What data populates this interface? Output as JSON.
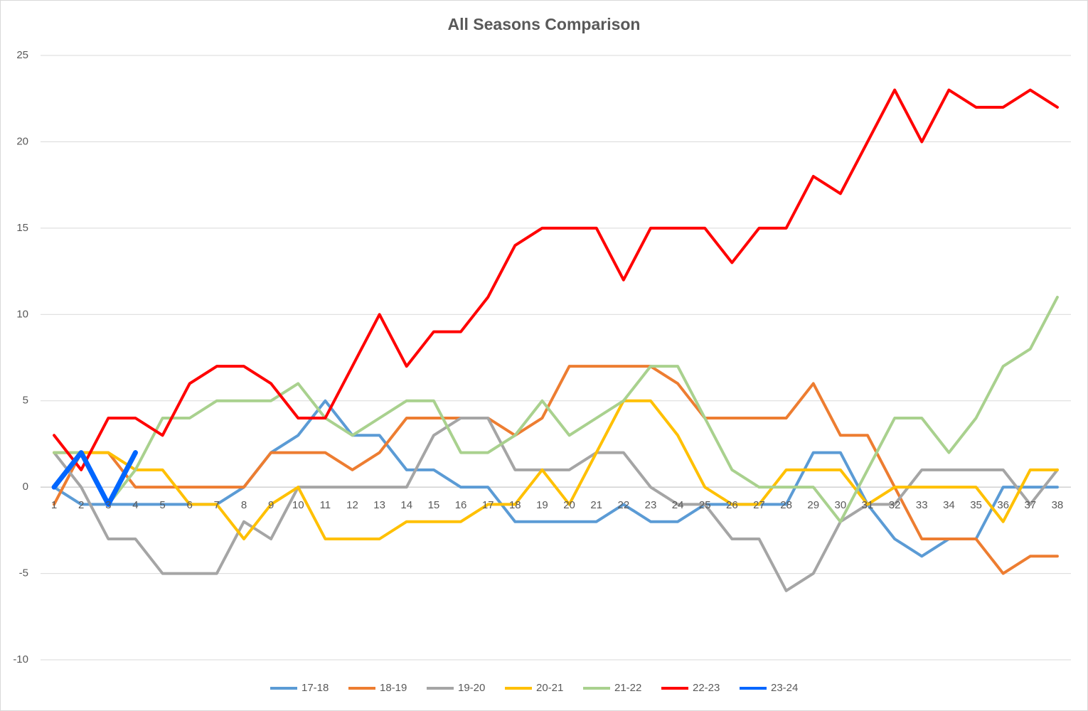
{
  "chart_data": {
    "type": "line",
    "title": "All Seasons Comparison",
    "categories": [
      1,
      2,
      3,
      4,
      5,
      6,
      7,
      8,
      9,
      10,
      11,
      12,
      13,
      14,
      15,
      16,
      17,
      18,
      19,
      20,
      21,
      22,
      23,
      24,
      25,
      26,
      27,
      28,
      29,
      30,
      31,
      32,
      33,
      34,
      35,
      36,
      37,
      38
    ],
    "ylim": [
      -10,
      25
    ],
    "yticks": [
      -10,
      -5,
      0,
      5,
      10,
      15,
      20,
      25
    ],
    "grid": true,
    "legend": "bottom",
    "series": [
      {
        "name": "17-18",
        "color": "#5b9bd5",
        "values": [
          0,
          -1,
          -1,
          -1,
          -1,
          -1,
          -1,
          0,
          2,
          3,
          5,
          3,
          3,
          1,
          1,
          0,
          0,
          -2,
          -2,
          -2,
          -2,
          -1,
          -2,
          -2,
          -1,
          -1,
          -1,
          -1,
          2,
          2,
          -1,
          -3,
          -4,
          -3,
          -3,
          0,
          0,
          0
        ]
      },
      {
        "name": "18-19",
        "color": "#ed7d31",
        "values": [
          -1,
          2,
          2,
          0,
          0,
          0,
          0,
          0,
          2,
          2,
          2,
          1,
          2,
          4,
          4,
          4,
          4,
          3,
          4,
          7,
          7,
          7,
          7,
          6,
          4,
          4,
          4,
          4,
          6,
          3,
          3,
          0,
          -3,
          -3,
          -3,
          -5,
          -4,
          -4
        ]
      },
      {
        "name": "19-20",
        "color": "#a5a5a5",
        "values": [
          2,
          0,
          -3,
          -3,
          -5,
          -5,
          -5,
          -2,
          -3,
          0,
          0,
          0,
          0,
          0,
          3,
          4,
          4,
          1,
          1,
          1,
          2,
          2,
          0,
          -1,
          -1,
          -3,
          -3,
          -6,
          -5,
          -2,
          -1,
          -1,
          1,
          1,
          1,
          1,
          -1,
          1
        ]
      },
      {
        "name": "20-21",
        "color": "#ffc000",
        "values": [
          2,
          2,
          2,
          1,
          1,
          -1,
          -1,
          -3,
          -1,
          0,
          -3,
          -3,
          -3,
          -2,
          -2,
          -2,
          -1,
          -1,
          1,
          -1,
          2,
          5,
          5,
          3,
          0,
          -1,
          -1,
          1,
          1,
          1,
          -1,
          0,
          0,
          0,
          0,
          -2,
          1,
          1
        ]
      },
      {
        "name": "21-22",
        "color": "#a9d18e",
        "values": [
          2,
          2,
          -1,
          1,
          4,
          4,
          5,
          5,
          5,
          6,
          4,
          3,
          4,
          5,
          5,
          2,
          2,
          3,
          5,
          3,
          4,
          5,
          7,
          7,
          4,
          1,
          0,
          0,
          0,
          -2,
          1,
          4,
          4,
          2,
          4,
          7,
          8,
          11
        ]
      },
      {
        "name": "22-23",
        "color": "#ff0000",
        "values": [
          3,
          1,
          4,
          4,
          3,
          6,
          7,
          7,
          6,
          4,
          4,
          7,
          10,
          7,
          9,
          9,
          11,
          14,
          15,
          15,
          15,
          12,
          15,
          15,
          15,
          13,
          15,
          15,
          18,
          17,
          20,
          23,
          20,
          23,
          22,
          22,
          23,
          22
        ]
      },
      {
        "name": "23-24",
        "color": "#0066ff",
        "width": 7,
        "values": [
          0,
          2,
          -1,
          2,
          null,
          null,
          null,
          null,
          null,
          null,
          null,
          null,
          null,
          null,
          null,
          null,
          null,
          null,
          null,
          null,
          null,
          null,
          null,
          null,
          null,
          null,
          null,
          null,
          null,
          null,
          null,
          null,
          null,
          null,
          null,
          null,
          null,
          null
        ]
      }
    ]
  }
}
